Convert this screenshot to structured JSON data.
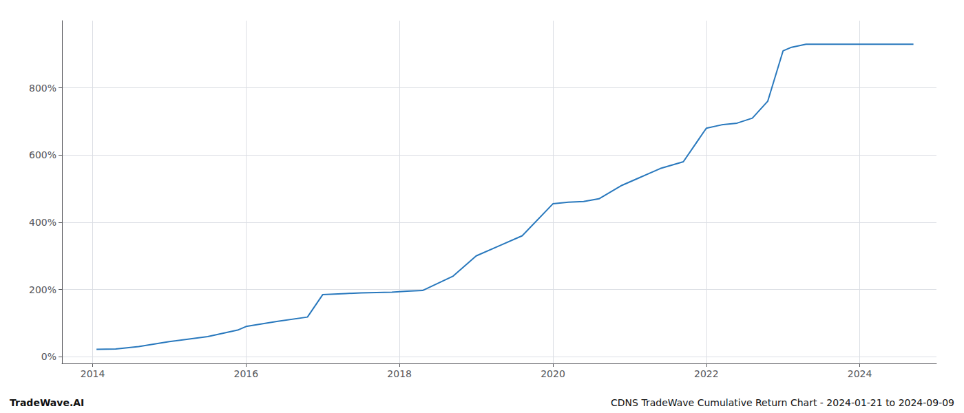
{
  "chart_data": {
    "type": "line",
    "annotations": [
      "TradeWave.AI",
      "CDNS TradeWave Cumulative Return Chart - 2024-01-21 to 2024-09-09"
    ],
    "x": [
      2014.05,
      2014.3,
      2014.6,
      2015.0,
      2015.5,
      2015.9,
      2016.0,
      2016.4,
      2016.8,
      2017.0,
      2017.3,
      2017.5,
      2017.9,
      2018.1,
      2018.3,
      2018.7,
      2019.0,
      2019.3,
      2019.6,
      2020.0,
      2020.2,
      2020.4,
      2020.6,
      2020.9,
      2021.1,
      2021.4,
      2021.7,
      2022.0,
      2022.2,
      2022.4,
      2022.6,
      2022.8,
      2023.0,
      2023.1,
      2023.3,
      2023.6,
      2024.0,
      2024.4,
      2024.7
    ],
    "values": [
      22,
      23,
      30,
      45,
      60,
      80,
      90,
      105,
      118,
      185,
      188,
      190,
      192,
      195,
      197,
      240,
      300,
      330,
      360,
      455,
      460,
      462,
      470,
      510,
      530,
      560,
      580,
      680,
      690,
      695,
      710,
      760,
      910,
      920,
      930,
      930,
      930,
      930,
      930
    ],
    "color": "#2878bd",
    "xlim": [
      2013.6,
      2025.0
    ],
    "ylim": [
      -20,
      1000
    ],
    "xticks": [
      2014,
      2016,
      2018,
      2020,
      2022,
      2024
    ],
    "yticks": [
      {
        "value": 0,
        "label": "0%"
      },
      {
        "value": 200,
        "label": "200%"
      },
      {
        "value": 400,
        "label": "400%"
      },
      {
        "value": 600,
        "label": "600%"
      },
      {
        "value": 800,
        "label": "800%"
      }
    ],
    "grid": true
  }
}
